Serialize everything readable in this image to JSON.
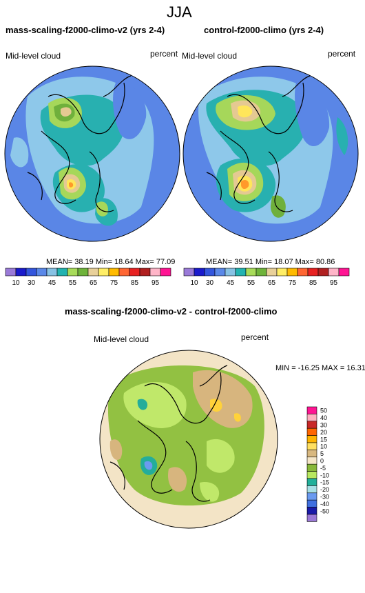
{
  "page_title": "JJA",
  "panels": [
    {
      "title": "mass-scaling-f2000-climo-v2 (yrs 2-4)",
      "variable": "Mid-level cloud",
      "units": "percent",
      "stats": "MEAN=  38.19  Min=  18.64  Max=  77.09"
    },
    {
      "title": "control-f2000-climo (yrs 2-4)",
      "variable": "Mid-level cloud",
      "units": "percent",
      "stats": "MEAN=  39.51  Min=  18.07  Max=  80.86"
    }
  ],
  "diff": {
    "title": "mass-scaling-f2000-climo-v2 - control-f2000-climo",
    "variable": "Mid-level cloud",
    "units": "percent",
    "stats": "MIN = -16.25 MAX =  16.31"
  },
  "colorbar_top": {
    "labels": [
      "10",
      "30",
      "45",
      "55",
      "65",
      "75",
      "85",
      "95"
    ],
    "colors": [
      "#9a7ad8",
      "#1a1acc",
      "#3355dd",
      "#5a88e8",
      "#88c2e4",
      "#22b3b0",
      "#a8dc5a",
      "#6eb33a",
      "#e8d09a",
      "#ffee66",
      "#ffbb00",
      "#ff6633",
      "#e82222",
      "#b02020",
      "#ffb5c8",
      "#ff1493"
    ]
  },
  "colorbar_diff": {
    "labels": [
      "50",
      "40",
      "30",
      "20",
      "15",
      "10",
      "5",
      "0",
      "-5",
      "-10",
      "-15",
      "-20",
      "-30",
      "-40",
      "-50"
    ],
    "colors": [
      "#ff1493",
      "#ffb0c0",
      "#c82828",
      "#ff6600",
      "#ffb400",
      "#ffe060",
      "#d8b880",
      "#f5e6c8",
      "#88b83a",
      "#b8e860",
      "#22b09a",
      "#a8e0e6",
      "#6a9af0",
      "#4070e0",
      "#1a1aa8",
      "#9a78d6"
    ]
  },
  "map_palette": {
    "ocean_low": "#5a86e6",
    "ocean_mid": "#8ec8ea",
    "teal": "#28b0b0",
    "green": "#a6d75a",
    "dark_green": "#6fb03c",
    "tan": "#e5c992",
    "yellow": "#ffe65a",
    "orange": "#ff9a2a",
    "diff_bg": "#f3e4c6",
    "diff_green": "#92c142",
    "diff_light_green": "#c0e86a",
    "diff_teal": "#24ad9a",
    "diff_tan": "#d7b57e",
    "diff_yellow": "#ffd23a",
    "diff_blue": "#6c9af0",
    "coast": "#000000"
  }
}
